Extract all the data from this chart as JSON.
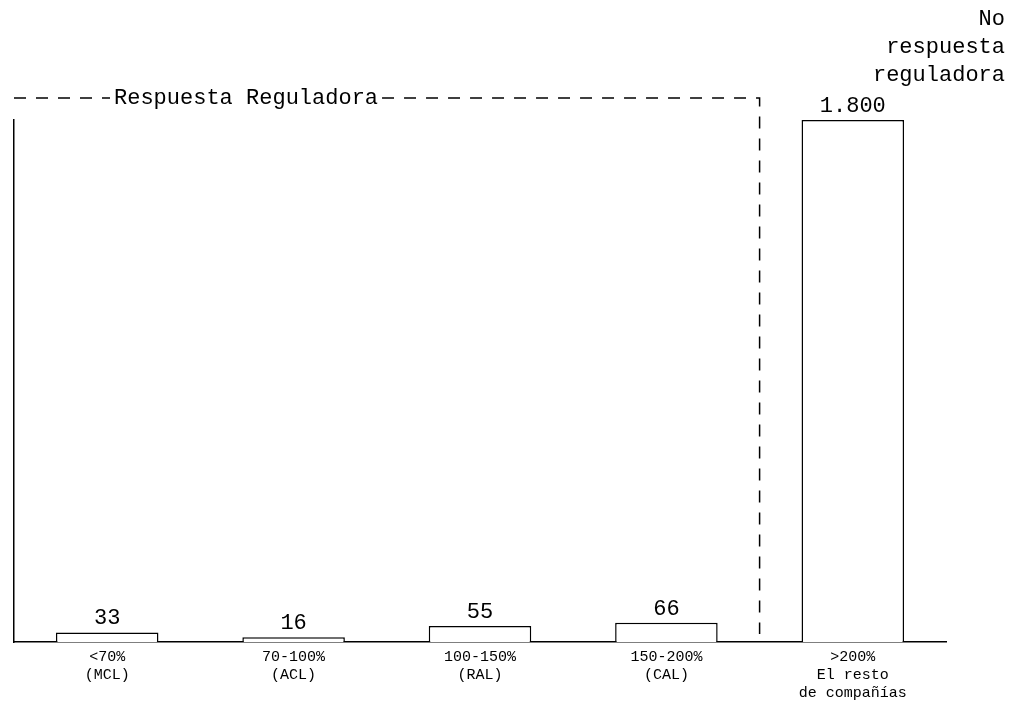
{
  "chart_data": {
    "type": "bar",
    "categories": [
      "<70%\n(MCL)",
      "70-100%\n(ACL)",
      "100-150%\n(RAL)",
      "150-200%\n(CAL)",
      ">200%\nEl resto\nde compañías"
    ],
    "values": [
      33,
      16,
      55,
      66,
      1800
    ],
    "value_labels": [
      "33",
      "16",
      "55",
      "66",
      "1.800"
    ],
    "color": "#ffffff",
    "annotations": [
      "Respuesta Reguladora",
      "No respuesta reguladora"
    ],
    "grid": false,
    "legend": false
  }
}
